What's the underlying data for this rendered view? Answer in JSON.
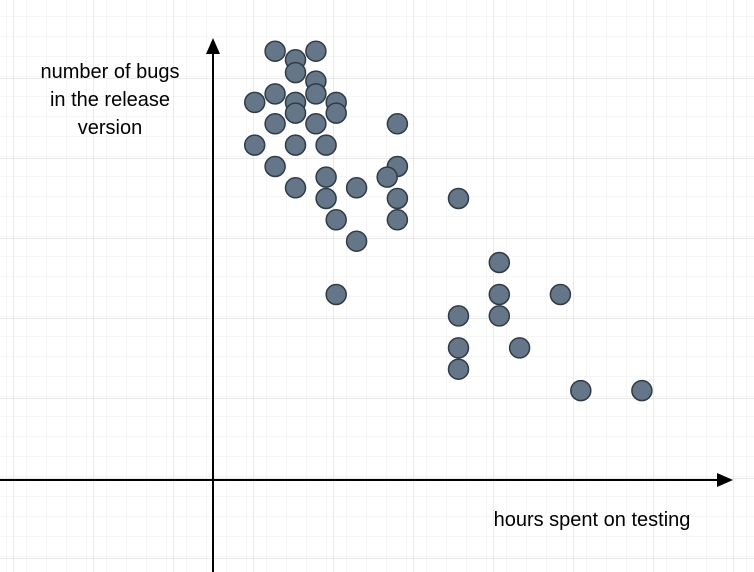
{
  "chart_data": {
    "type": "scatter",
    "title": "",
    "xlabel": "hours spent on testing",
    "ylabel_lines": [
      "number of bugs",
      "in the release",
      "version"
    ],
    "grid": true,
    "legend": "none",
    "xlim": [
      -10,
      27
    ],
    "ylim": [
      -4.6,
      22.2
    ],
    "point_color": "#647687",
    "series": [
      {
        "points": [
          [
            3.5,
            19.8
          ],
          [
            4.5,
            19.4
          ],
          [
            5.5,
            19.8
          ],
          [
            4.5,
            18.8
          ],
          [
            5.5,
            18.4
          ],
          [
            2.5,
            17.4
          ],
          [
            3.5,
            17.8
          ],
          [
            4.5,
            17.4
          ],
          [
            5.5,
            17.8
          ],
          [
            6.5,
            17.4
          ],
          [
            4.5,
            16.9
          ],
          [
            6.5,
            16.9
          ],
          [
            3.5,
            16.4
          ],
          [
            5.5,
            16.4
          ],
          [
            9.5,
            16.4
          ],
          [
            2.5,
            15.4
          ],
          [
            4.5,
            15.4
          ],
          [
            6.0,
            15.4
          ],
          [
            3.5,
            14.4
          ],
          [
            9.5,
            14.4
          ],
          [
            6.0,
            13.9
          ],
          [
            9.0,
            13.9
          ],
          [
            4.5,
            13.4
          ],
          [
            7.5,
            13.4
          ],
          [
            6.0,
            12.9
          ],
          [
            9.5,
            12.9
          ],
          [
            12.5,
            12.9
          ],
          [
            6.5,
            11.9
          ],
          [
            9.5,
            11.9
          ],
          [
            7.5,
            10.9
          ],
          [
            14.5,
            9.9
          ],
          [
            6.5,
            8.4
          ],
          [
            14.5,
            8.4
          ],
          [
            17.5,
            8.4
          ],
          [
            12.5,
            7.4
          ],
          [
            14.5,
            7.4
          ],
          [
            12.5,
            5.9
          ],
          [
            15.5,
            5.9
          ],
          [
            12.5,
            4.9
          ],
          [
            18.5,
            3.9
          ],
          [
            21.5,
            3.9
          ]
        ]
      }
    ]
  }
}
